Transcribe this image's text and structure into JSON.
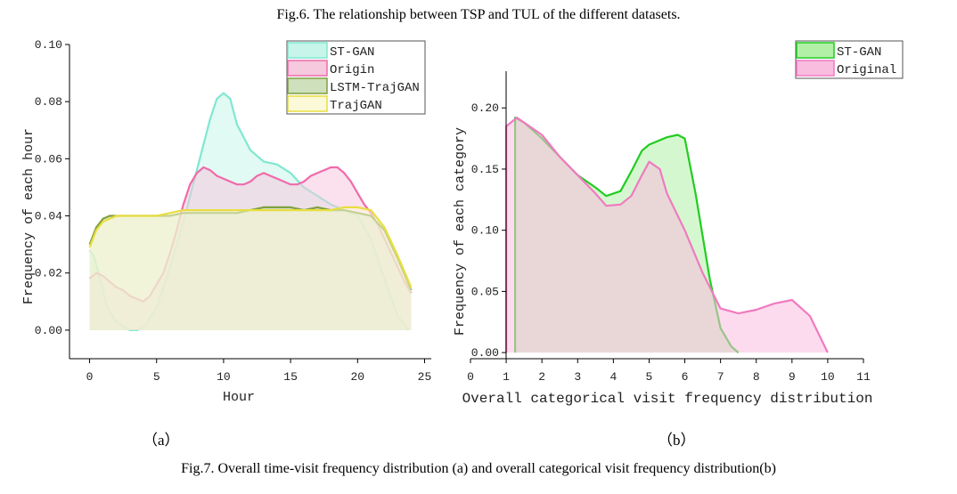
{
  "captions": {
    "top": "Fig.6. The relationship between TSP and TUL of the different datasets.",
    "bottom": "Fig.7. Overall time-visit frequency distribution (a) and overall categorical visit frequency distribution(b)",
    "sub_a": "（a）",
    "sub_b": "（b）"
  },
  "chart_data": [
    {
      "type": "area",
      "xlabel": "Hour",
      "ylabel": "Frequency of each hour",
      "xlim": [
        -1.5,
        25.5
      ],
      "ylim": [
        -0.01,
        0.1
      ],
      "xticks": [
        "0",
        "5",
        "10",
        "15",
        "20",
        "25"
      ],
      "yticks": [
        "0.00",
        "0.02",
        "0.04",
        "0.06",
        "0.08",
        "0.10"
      ],
      "grid": false,
      "legend": "top-right",
      "series": [
        {
          "name": "ST-GAN",
          "color": "#7fe8d0",
          "fill": "#c8f5ea",
          "x": [
            0,
            0.3,
            0.8,
            1.3,
            2,
            3,
            3.6,
            4.2,
            5,
            6,
            7,
            8,
            9,
            9.5,
            10,
            10.5,
            11,
            12,
            13,
            14,
            15,
            16,
            17,
            18,
            19,
            20,
            21,
            22,
            23,
            23.8
          ],
          "y": [
            0.028,
            0.026,
            0.018,
            0.008,
            0.003,
            0.0,
            0.0,
            0.002,
            0.008,
            0.022,
            0.038,
            0.056,
            0.074,
            0.081,
            0.083,
            0.081,
            0.072,
            0.063,
            0.059,
            0.058,
            0.055,
            0.05,
            0.047,
            0.044,
            0.042,
            0.04,
            0.032,
            0.018,
            0.005,
            0.0
          ]
        },
        {
          "name": "Origin",
          "color": "#f06aaa",
          "fill": "#f6c9de",
          "x": [
            0,
            0.5,
            1,
            1.5,
            2,
            2.5,
            3,
            3.5,
            4,
            4.5,
            5,
            5.5,
            6,
            6.5,
            7,
            7.5,
            8,
            8.5,
            9,
            9.5,
            10,
            10.5,
            11,
            11.5,
            12,
            12.5,
            13,
            13.5,
            14,
            14.5,
            15,
            15.5,
            16,
            16.5,
            17,
            17.5,
            18,
            18.5,
            19,
            19.5,
            20,
            20.5,
            21,
            21.5,
            22,
            22.5,
            23,
            23.5,
            24
          ],
          "y": [
            0.018,
            0.02,
            0.019,
            0.017,
            0.015,
            0.014,
            0.012,
            0.011,
            0.01,
            0.012,
            0.016,
            0.02,
            0.027,
            0.035,
            0.044,
            0.051,
            0.055,
            0.057,
            0.056,
            0.054,
            0.053,
            0.052,
            0.051,
            0.051,
            0.052,
            0.054,
            0.055,
            0.054,
            0.053,
            0.052,
            0.051,
            0.051,
            0.052,
            0.054,
            0.055,
            0.056,
            0.057,
            0.057,
            0.055,
            0.052,
            0.048,
            0.044,
            0.041,
            0.037,
            0.032,
            0.027,
            0.022,
            0.017,
            0.013
          ]
        },
        {
          "name": "LSTM-TrajGAN",
          "color": "#7fa040",
          "fill": "#cfe0bc",
          "x": [
            0,
            0.5,
            1,
            1.5,
            2,
            3,
            4,
            5,
            6,
            7,
            8,
            9,
            10,
            11,
            12,
            13,
            14,
            15,
            16,
            17,
            18,
            19,
            20,
            21,
            22,
            23,
            24
          ],
          "y": [
            0.03,
            0.036,
            0.039,
            0.04,
            0.04,
            0.04,
            0.04,
            0.04,
            0.04,
            0.041,
            0.041,
            0.041,
            0.041,
            0.041,
            0.042,
            0.043,
            0.043,
            0.043,
            0.042,
            0.043,
            0.042,
            0.042,
            0.041,
            0.04,
            0.035,
            0.025,
            0.014
          ]
        },
        {
          "name": "TrajGAN",
          "color": "#e8de40",
          "fill": "#fbf9d8",
          "x": [
            0,
            0.5,
            1,
            1.5,
            2,
            3,
            4,
            5,
            6,
            7,
            8,
            9,
            10,
            11,
            12,
            13,
            14,
            15,
            16,
            17,
            18,
            19,
            20,
            21,
            22,
            23,
            24
          ],
          "y": [
            0.029,
            0.035,
            0.038,
            0.039,
            0.04,
            0.04,
            0.04,
            0.04,
            0.041,
            0.042,
            0.042,
            0.042,
            0.042,
            0.042,
            0.042,
            0.042,
            0.042,
            0.042,
            0.042,
            0.042,
            0.042,
            0.043,
            0.043,
            0.042,
            0.036,
            0.026,
            0.015
          ]
        }
      ]
    },
    {
      "type": "area",
      "xlabel": "Overall categorical visit frequency distribution",
      "ylabel": "Frequency of each category",
      "xlim": [
        0,
        11
      ],
      "ylim": [
        -0.005,
        0.23
      ],
      "xticks": [
        "0",
        "1",
        "2",
        "3",
        "4",
        "5",
        "6",
        "7",
        "8",
        "9",
        "10",
        "11"
      ],
      "yticks": [
        "0.00",
        "0.05",
        "0.10",
        "0.15",
        "0.20"
      ],
      "grid": false,
      "legend": "top-right",
      "series": [
        {
          "name": "ST-GAN",
          "color": "#22cc22",
          "fill": "#b2f0a8",
          "x": [
            1.25,
            1.25,
            1.5,
            2,
            2.5,
            3,
            3.5,
            3.8,
            4.2,
            4.5,
            4.8,
            5,
            5.5,
            5.8,
            6,
            6.3,
            6.7,
            7,
            7.3,
            7.5
          ],
          "y": [
            0,
            0.192,
            0.188,
            0.175,
            0.16,
            0.145,
            0.135,
            0.128,
            0.132,
            0.148,
            0.165,
            0.17,
            0.176,
            0.178,
            0.175,
            0.13,
            0.06,
            0.02,
            0.005,
            0.0
          ]
        },
        {
          "name": "Original",
          "color": "#f07ac0",
          "fill": "#f9bde0",
          "x": [
            1,
            1,
            1.3,
            2,
            2.5,
            3,
            3.5,
            3.8,
            4.2,
            4.5,
            4.8,
            5,
            5.3,
            5.5,
            6,
            6.5,
            7,
            7.5,
            8,
            8.5,
            9,
            9.5,
            10
          ],
          "y": [
            0,
            0.185,
            0.192,
            0.178,
            0.16,
            0.145,
            0.13,
            0.12,
            0.121,
            0.128,
            0.145,
            0.156,
            0.15,
            0.13,
            0.1,
            0.065,
            0.036,
            0.032,
            0.035,
            0.04,
            0.043,
            0.03,
            0.0
          ]
        }
      ]
    }
  ]
}
